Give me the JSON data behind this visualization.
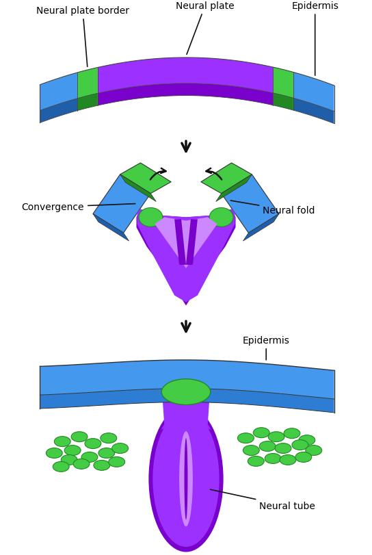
{
  "bg_color": "#ffffff",
  "purple": "#9B30FF",
  "purple_dark": "#7A00CC",
  "purple_light": "#CC88FF",
  "blue": "#4499EE",
  "blue_dark": "#1F5FAA",
  "blue_mid": "#2E7DD4",
  "green": "#44CC44",
  "green_dark": "#228822",
  "black": "#111111",
  "labels": {
    "neural_plate_border": "Neural plate border",
    "neural_plate": "Neural plate",
    "epidermis_top": "Epidermis",
    "convergence": "Convergence",
    "neural_fold": "Neural fold",
    "epidermis_mid": "Epidermis",
    "neural_tube": "Neural tube"
  },
  "figure_width": 5.44,
  "figure_height": 8.12
}
